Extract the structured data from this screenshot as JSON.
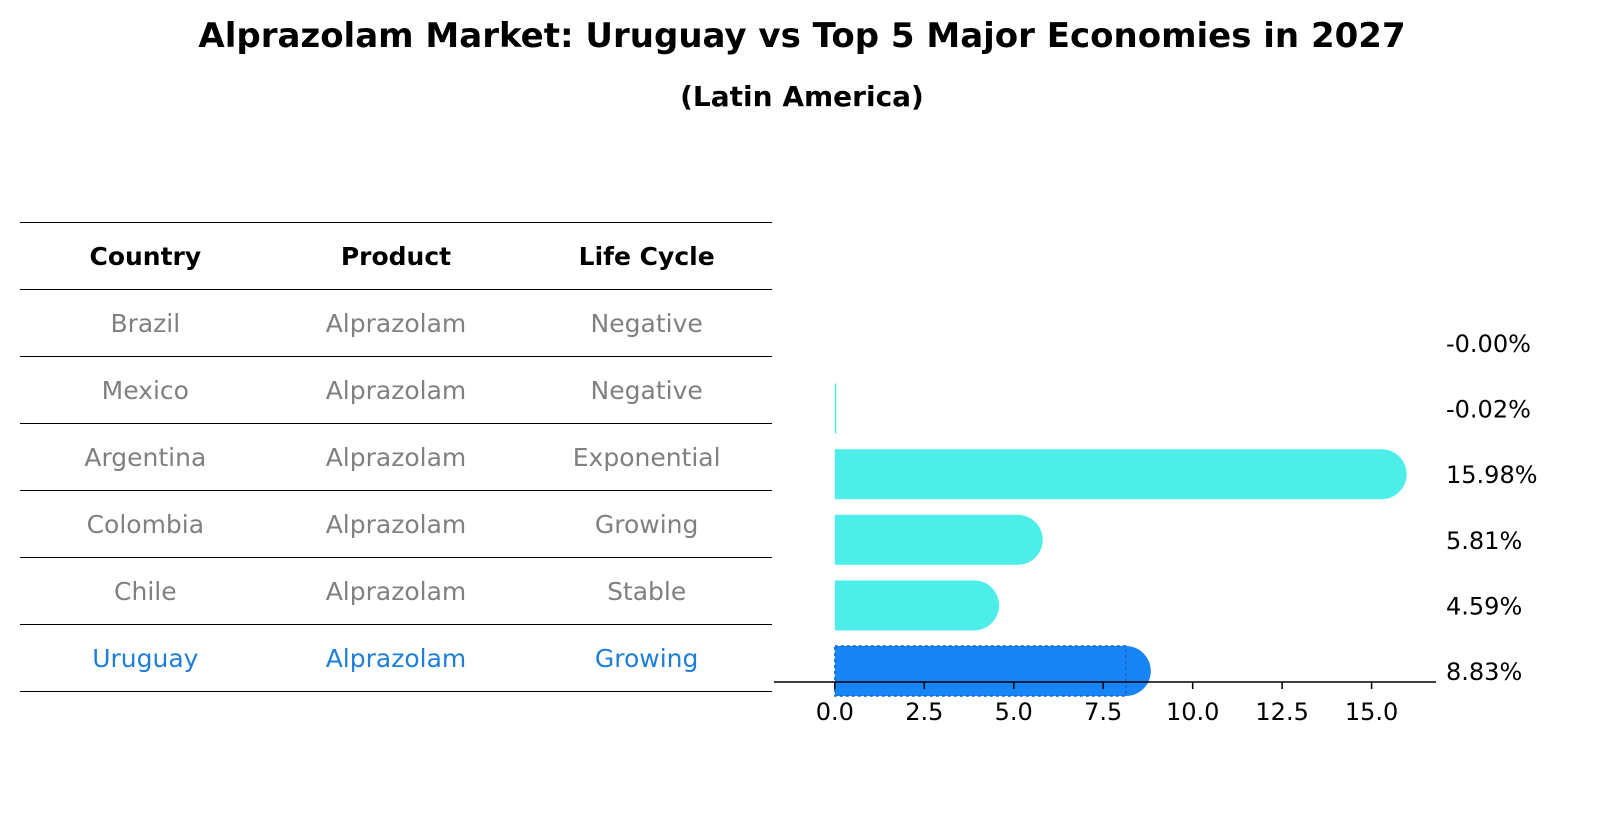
{
  "title": "Alprazolam Market: Uruguay vs Top 5 Major Economies in 2027",
  "subtitle": "(Latin America)",
  "table": {
    "headers": [
      "Country",
      "Product",
      "Life Cycle"
    ],
    "rows": [
      {
        "country": "Brazil",
        "product": "Alprazolam",
        "life_cycle": "Negative"
      },
      {
        "country": "Mexico",
        "product": "Alprazolam",
        "life_cycle": "Negative"
      },
      {
        "country": "Argentina",
        "product": "Alprazolam",
        "life_cycle": "Exponential"
      },
      {
        "country": "Colombia",
        "product": "Alprazolam",
        "life_cycle": "Growing"
      },
      {
        "country": "Chile",
        "product": "Alprazolam",
        "life_cycle": "Stable"
      },
      {
        "country": "Uruguay",
        "product": "Alprazolam",
        "life_cycle": "Growing"
      }
    ]
  },
  "chart_data": {
    "type": "bar",
    "orientation": "horizontal",
    "categories": [
      "Brazil",
      "Mexico",
      "Argentina",
      "Colombia",
      "Chile",
      "Uruguay"
    ],
    "values": [
      -0.0,
      -0.02,
      15.98,
      5.81,
      4.59,
      8.83
    ],
    "value_labels": [
      "-0.00%",
      "-0.02%",
      "15.98%",
      "5.81%",
      "4.59%",
      "8.83%"
    ],
    "highlight": "Uruguay",
    "xlim": [
      -1.7,
      16.8
    ],
    "xticks": [
      0.0,
      2.5,
      5.0,
      7.5,
      10.0,
      12.5,
      15.0
    ],
    "xtick_labels": [
      "0.0",
      "2.5",
      "5.0",
      "7.5",
      "10.0",
      "12.5",
      "15.0"
    ],
    "grid": false,
    "colors": {
      "default": "#4deeea",
      "highlight": "#1785f5"
    }
  }
}
